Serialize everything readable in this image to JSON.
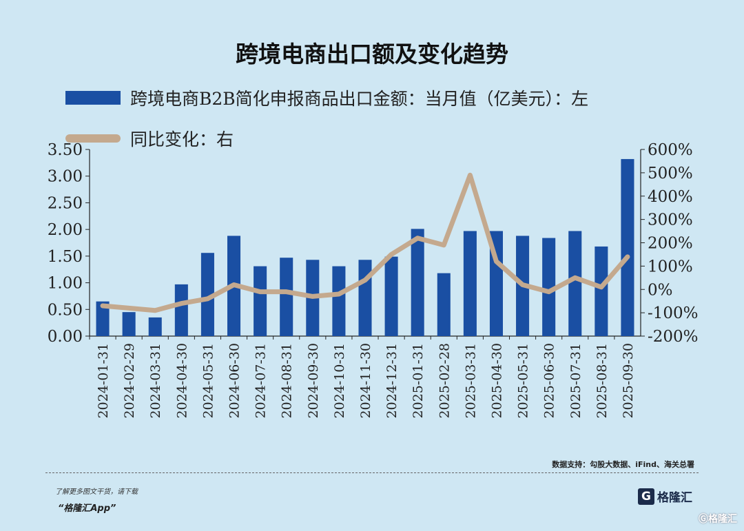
{
  "chart_data": {
    "type": "bar+line",
    "title": "跨境电商出口额及变化趋势",
    "categories": [
      "2024-01-31",
      "2024-02-29",
      "2024-03-31",
      "2024-04-30",
      "2024-05-31",
      "2024-06-30",
      "2024-07-31",
      "2024-08-31",
      "2024-09-30",
      "2024-10-31",
      "2024-11-30",
      "2024-12-31",
      "2025-01-31",
      "2025-02-28",
      "2025-03-31",
      "2025-04-30",
      "2025-05-31",
      "2025-06-30",
      "2025-07-31",
      "2025-08-31",
      "2025-09-30"
    ],
    "series": [
      {
        "name": "跨境电商B2B简化申报商品出口金额：当月值（亿美元）：左",
        "type": "bar",
        "axis": "left",
        "color": "#1a4fa3",
        "values": [
          0.65,
          0.45,
          0.35,
          0.97,
          1.56,
          1.88,
          1.31,
          1.47,
          1.43,
          1.31,
          1.43,
          1.49,
          2.01,
          1.18,
          1.97,
          1.97,
          1.88,
          1.84,
          1.97,
          1.68,
          3.32
        ]
      },
      {
        "name": "同比变化：右",
        "type": "line",
        "axis": "right",
        "color": "#c4a98e",
        "values": [
          -70,
          -80,
          -90,
          -60,
          -40,
          20,
          -10,
          -10,
          -30,
          -20,
          40,
          150,
          220,
          190,
          490,
          120,
          20,
          -10,
          50,
          10,
          140
        ]
      }
    ],
    "y_left": {
      "range": [
        0,
        3.5
      ],
      "ticks": [
        "0.00",
        "0.50",
        "1.00",
        "1.50",
        "2.00",
        "2.50",
        "3.00",
        "3.50"
      ]
    },
    "y_right": {
      "range": [
        -200,
        600
      ],
      "ticks": [
        "-200%",
        "-100%",
        "0%",
        "100%",
        "200%",
        "300%",
        "400%",
        "500%",
        "600%"
      ]
    },
    "legend_placement": "top-left",
    "grid": false
  },
  "source": "数据支持：勾股大数据、iFind、海关总署",
  "footer": {
    "line1": "了解更多图文干货，请下载",
    "line2": "“格隆汇App”",
    "brand_icon": "G",
    "brand": "格隆汇",
    "corner": "Ⓖ格隆汇"
  }
}
